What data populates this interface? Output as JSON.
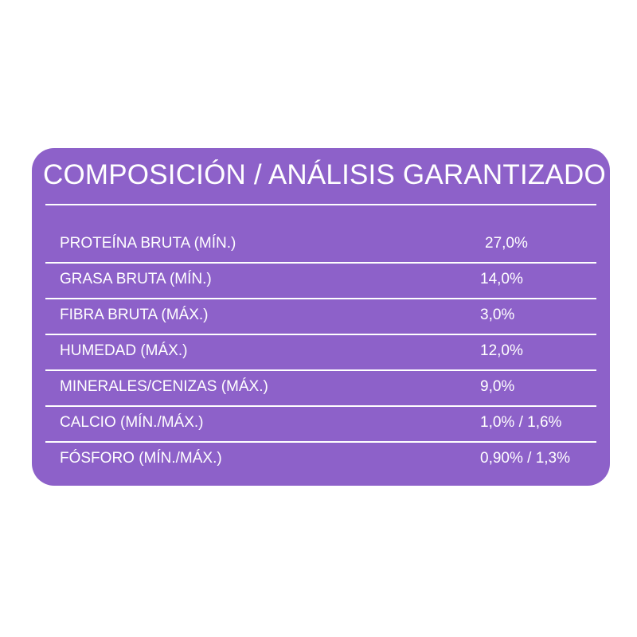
{
  "title": "COMPOSICIÓN / ANÁLISIS GARANTIZADO",
  "colors": {
    "panel": "#8d61c9",
    "text": "#ffffff",
    "background": "#ffffff"
  },
  "rows": [
    {
      "label": "PROTEÍNA BRUTA (MÍN.)",
      "value": "27,0%"
    },
    {
      "label": "GRASA BRUTA (MÍN.)",
      "value": "14,0%"
    },
    {
      "label": "FIBRA BRUTA (MÁX.)",
      "value": "3,0%"
    },
    {
      "label": "HUMEDAD (MÁX.)",
      "value": "12,0%"
    },
    {
      "label": "MINERALES/CENIZAS (MÁX.)",
      "value": "9,0%"
    },
    {
      "label": "CALCIO (MÍN./MÁX.)",
      "value": "1,0% / 1,6%"
    },
    {
      "label": "FÓSFORO (MÍN./MÁX.)",
      "value": "0,90% / 1,3%"
    }
  ]
}
